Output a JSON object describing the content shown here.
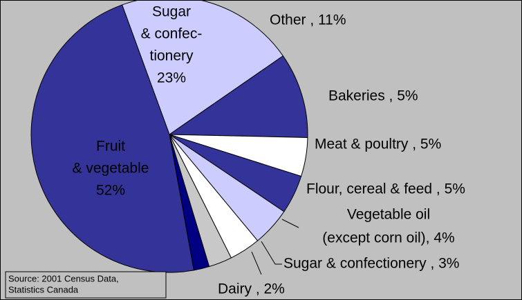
{
  "chart_data": {
    "type": "pie",
    "labels": [
      [
        "Sugar",
        "& confec-",
        "tionery",
        "23%"
      ],
      [
        "Other , 11%"
      ],
      [
        "Bakeries , 5%"
      ],
      [
        "Meat & poultry , 5%"
      ],
      [
        "Flour, cereal & feed , 5%"
      ],
      [
        "Vegetable oil",
        "(except corn oil), 4%"
      ],
      [
        "Sugar & confectionery , 3%"
      ],
      [
        "Dairy , 2%"
      ],
      [
        "Fruit",
        "& vegetable",
        "52%"
      ]
    ],
    "values": [
      23,
      11,
      5,
      5,
      5,
      4,
      3,
      2,
      52
    ],
    "colors": [
      "#ccccff",
      "#333399",
      "#ffffff",
      "#333399",
      "#ccccff",
      "#ffffff",
      "#c8c8c8",
      "#000080",
      "#333399"
    ],
    "source": [
      "Source: 2001 Census Data,",
      "Statistics Canada"
    ]
  }
}
